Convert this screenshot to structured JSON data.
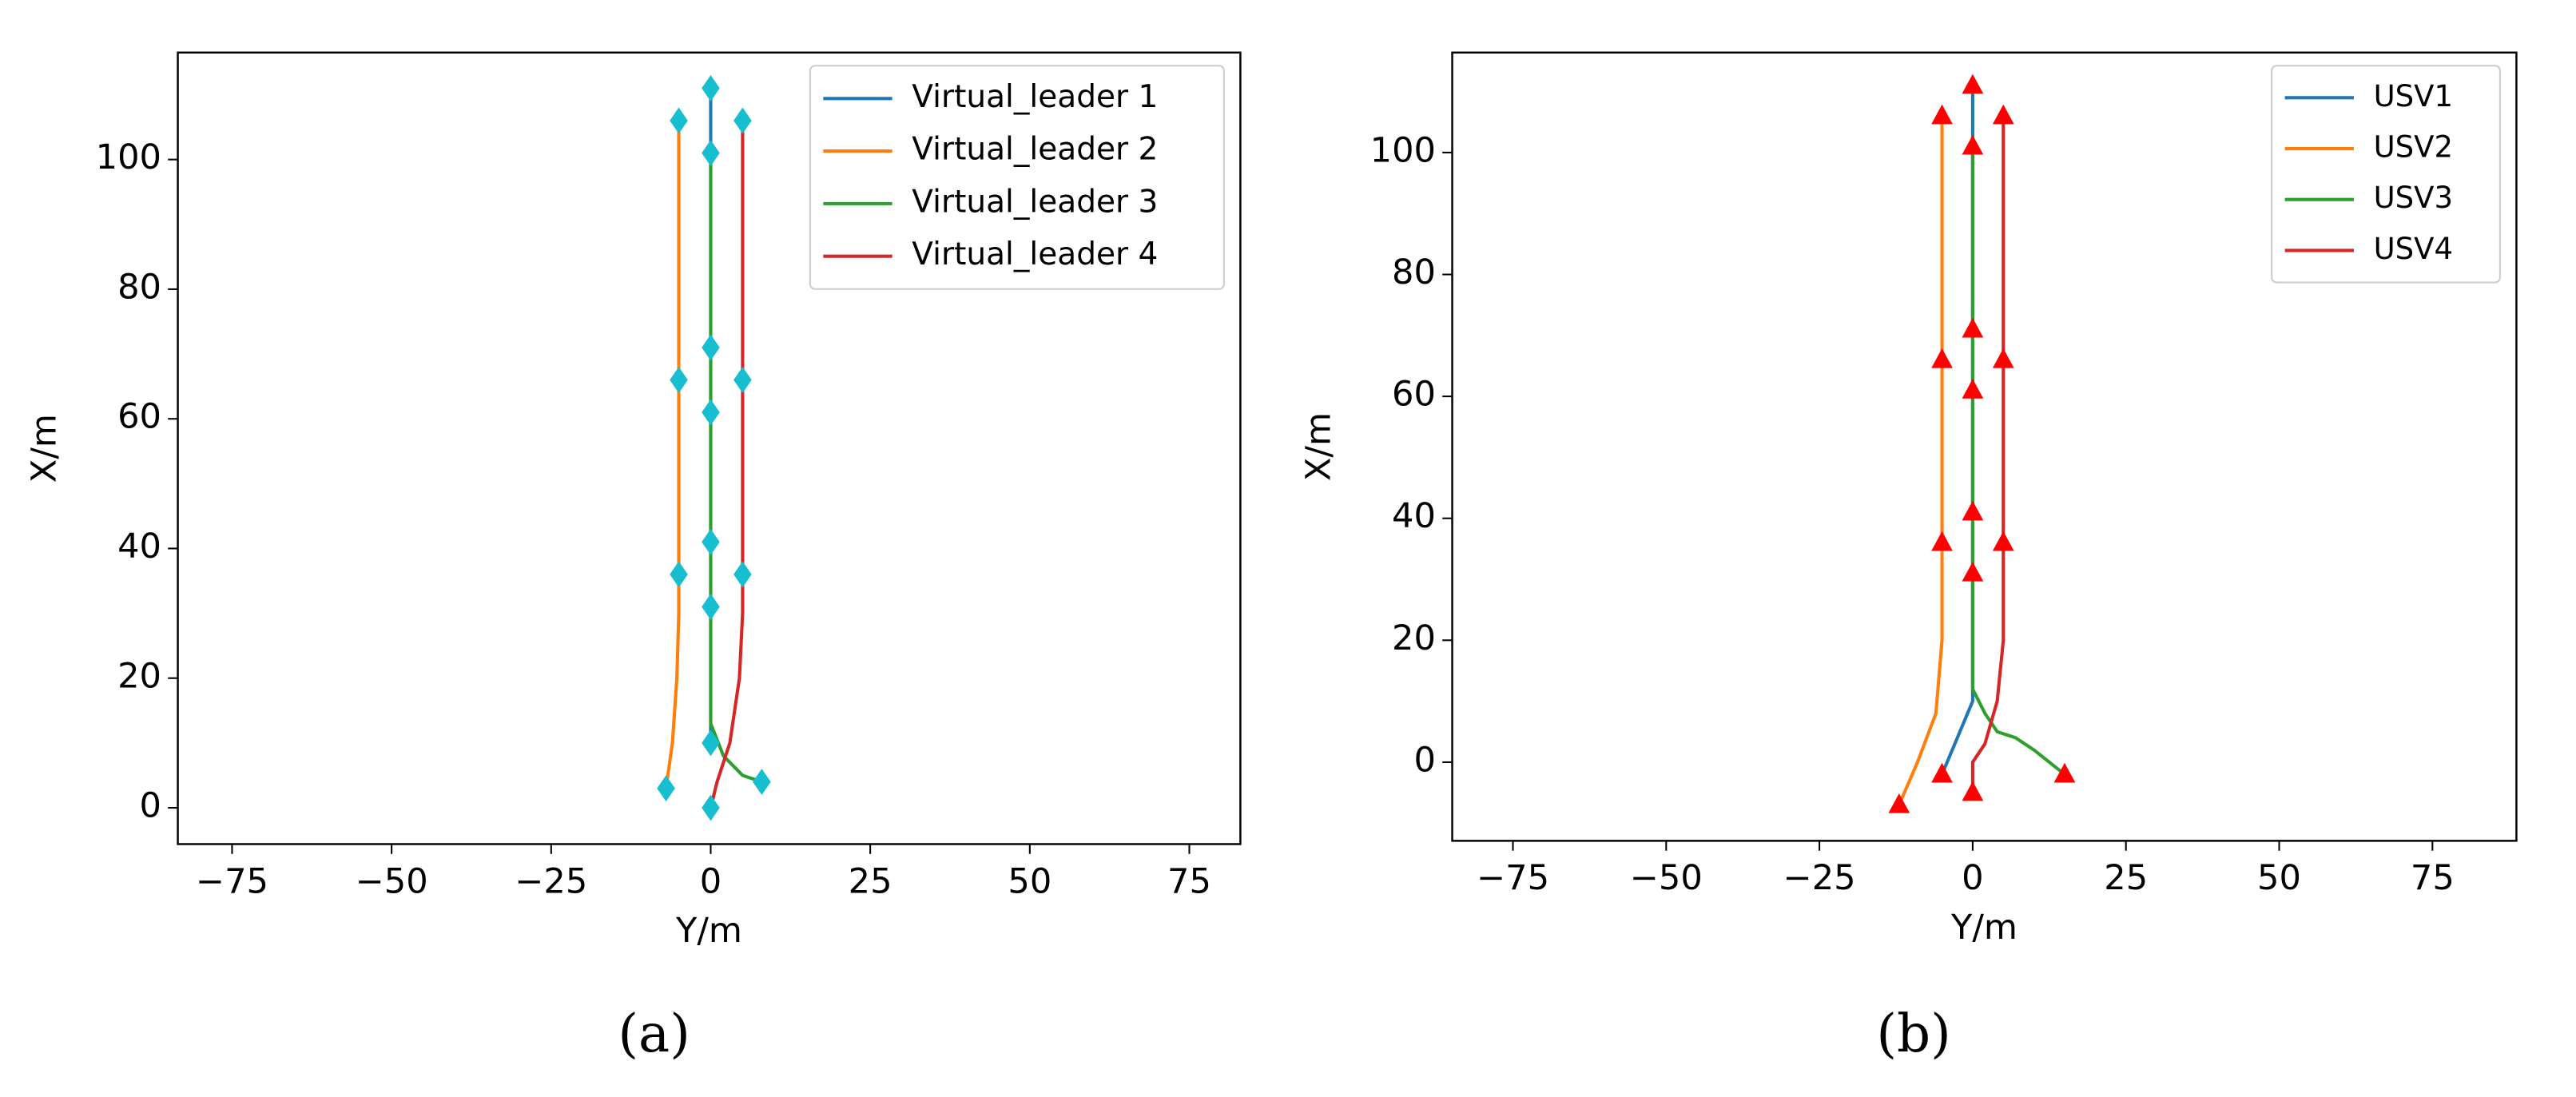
{
  "chart_data": [
    {
      "type": "line",
      "caption": "(a)",
      "xlabel": "Y/m",
      "ylabel": "X/m",
      "xlim": [
        -83.5,
        83
      ],
      "ylim": [
        -5.6,
        116.5
      ],
      "xticks": [
        {
          "value": -75,
          "label": "−75"
        },
        {
          "value": -50,
          "label": "−50"
        },
        {
          "value": -25,
          "label": "−25"
        },
        0,
        25,
        50,
        75
      ],
      "yticks": [
        0,
        20,
        40,
        60,
        80,
        100
      ],
      "legend": "upper right",
      "series": [
        {
          "name": "Virtual_leader 1",
          "color": "#1f77b4",
          "x": [
            0,
            0
          ],
          "values": [
            10,
            111
          ]
        },
        {
          "name": "Virtual_leader 2",
          "color": "#ff7f0e",
          "x": [
            -7,
            -6,
            -5.3,
            -5,
            -5
          ],
          "values": [
            3,
            10,
            20,
            30,
            106
          ]
        },
        {
          "name": "Virtual_leader 3",
          "color": "#2ca02c",
          "x": [
            8,
            5,
            2,
            0,
            0,
            0
          ],
          "values": [
            4,
            5,
            8,
            13,
            20,
            101
          ]
        },
        {
          "name": "Virtual_leader 4",
          "color": "#d62728",
          "x": [
            0,
            1,
            3,
            4.5,
            5,
            5
          ],
          "values": [
            0,
            4,
            10,
            20,
            30,
            106
          ]
        }
      ],
      "markers": {
        "shape": "diamond",
        "color": "#17becf",
        "x": [
          0,
          0,
          0,
          0,
          0,
          0,
          0,
          0,
          -5,
          -5,
          -5,
          -7,
          5,
          5,
          5,
          8
        ],
        "y": [
          111,
          101,
          71,
          61,
          41,
          31,
          10,
          0,
          106,
          66,
          36,
          3,
          106,
          66,
          36,
          4
        ]
      }
    },
    {
      "type": "line",
      "caption": "(b)",
      "xlabel": "Y/m",
      "ylabel": "X/m",
      "xlim": [
        -84.9,
        88.7
      ],
      "ylim": [
        -12.9,
        116.4
      ],
      "xticks": [
        {
          "value": -75,
          "label": "−75"
        },
        {
          "value": -50,
          "label": "−50"
        },
        {
          "value": -25,
          "label": "−25"
        },
        0,
        25,
        50,
        75
      ],
      "yticks": [
        0,
        20,
        40,
        60,
        80,
        100
      ],
      "legend": "upper right",
      "series": [
        {
          "name": "USV1",
          "color": "#1f77b4",
          "x": [
            -5,
            0,
            0
          ],
          "values": [
            -2,
            10,
            111
          ]
        },
        {
          "name": "USV2",
          "color": "#ff7f0e",
          "x": [
            -12,
            -9,
            -6,
            -5,
            -5
          ],
          "values": [
            -7,
            0,
            8,
            20,
            106
          ]
        },
        {
          "name": "USV3",
          "color": "#2ca02c",
          "x": [
            15,
            10,
            7,
            4,
            2,
            0,
            0,
            0
          ],
          "values": [
            -2,
            2,
            4,
            5,
            8,
            12,
            20,
            101
          ]
        },
        {
          "name": "USV4",
          "color": "#d62728",
          "x": [
            0,
            0,
            2,
            4,
            5,
            5
          ],
          "values": [
            -5,
            0,
            3,
            10,
            20,
            106
          ]
        }
      ],
      "markers": {
        "shape": "triangle",
        "color": "#ff0000",
        "x": [
          0,
          0,
          0,
          0,
          0,
          0,
          0,
          -5,
          -5,
          -5,
          -5,
          -12,
          5,
          5,
          5,
          15
        ],
        "y": [
          111,
          101,
          71,
          61,
          41,
          31,
          -5,
          106,
          66,
          36,
          -2,
          -7,
          106,
          66,
          36,
          -2
        ]
      }
    }
  ]
}
